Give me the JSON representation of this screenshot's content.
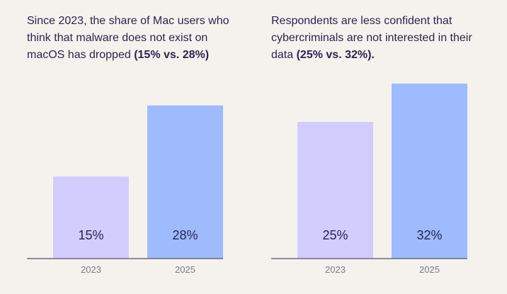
{
  "colors": {
    "background": "#f5f2ee",
    "text": "#2b2450",
    "bar_2023": "#d1cdfd",
    "bar_2025": "#9dbbfd",
    "axis": "#6b6b80",
    "tick": "#7a7a8a"
  },
  "panels": [
    {
      "headline": "Since 2023, the share of Mac users who think that malware does not exist on macOS has dropped ",
      "highlight": "(15% vs. 28%)"
    },
    {
      "headline": "Respondents are less confident that cybercriminals are not interested in their data ",
      "highlight": "(25% vs. 32%)."
    }
  ],
  "chart_data": [
    {
      "type": "bar",
      "title": "Since 2023, the share of Mac users who think that malware does not exist on macOS has dropped (15% vs. 28%)",
      "categories": [
        "2023",
        "2025"
      ],
      "values": [
        15,
        28
      ],
      "data_labels": [
        "15%",
        "28%"
      ],
      "ylim": [
        0,
        32
      ],
      "xlabel": "",
      "ylabel": ""
    },
    {
      "type": "bar",
      "title": "Respondents are less confident that cybercriminals are not interested in their data (25% vs. 32%).",
      "categories": [
        "2023",
        "2025"
      ],
      "values": [
        25,
        32
      ],
      "data_labels": [
        "25%",
        "32%"
      ],
      "ylim": [
        0,
        32
      ],
      "xlabel": "",
      "ylabel": ""
    }
  ]
}
